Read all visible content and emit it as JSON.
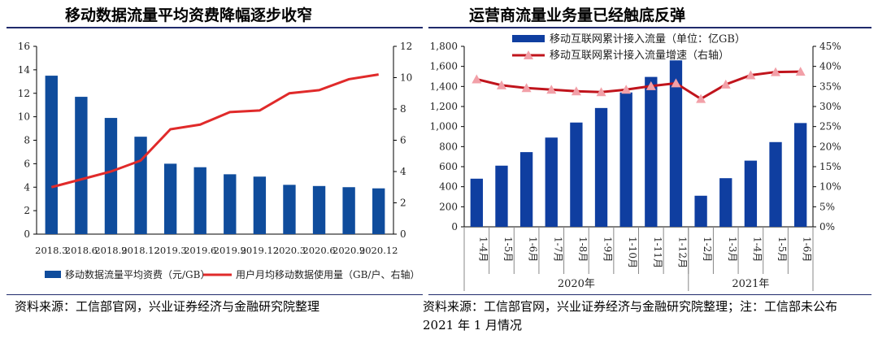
{
  "chart_data": [
    {
      "type": "bar",
      "title": "移动数据流量平均资费降幅逐步收窄",
      "categories": [
        "2018.3",
        "2018.6",
        "2018.9",
        "2018.12",
        "2019.3",
        "2019.6",
        "2019.9",
        "2019.12",
        "2020.3",
        "2020.6",
        "2020.9",
        "2020.12"
      ],
      "series": [
        {
          "name": "移动数据流量平均资费（元/GB）",
          "type": "bar",
          "axis": "left",
          "color": "#0f4c9c",
          "values": [
            13.5,
            11.7,
            9.9,
            8.3,
            6.0,
            5.7,
            5.1,
            4.9,
            4.2,
            4.1,
            4.0,
            3.9
          ]
        },
        {
          "name": "用户月均移动数据使用量（GB/户、右轴）",
          "type": "line",
          "axis": "right",
          "color": "#e02a2a",
          "values": [
            3.0,
            3.5,
            4.0,
            4.7,
            6.7,
            7.0,
            7.8,
            7.9,
            9.0,
            9.2,
            9.9,
            10.2
          ]
        }
      ],
      "ylim": [
        0,
        16
      ],
      "yticks": [
        "0",
        "2",
        "4",
        "6",
        "8",
        "10",
        "12",
        "14",
        "16"
      ],
      "y2lim": [
        0,
        12
      ],
      "y2ticks": [
        "0",
        "2",
        "4",
        "6",
        "8",
        "10",
        "12"
      ],
      "legend": "bottom",
      "grid": false,
      "source": "资料来源：工信部官网，兴业证券经济与金融研究院整理"
    },
    {
      "type": "bar",
      "title": "运营商流量业务量已经触底反弹",
      "categories": [
        "1-4月",
        "1-5月",
        "1-6月",
        "1-7月",
        "1-8月",
        "1-9月",
        "1-10月",
        "1-11月",
        "1-12月",
        "1-2月",
        "1-3月",
        "1-4月",
        "1-5月",
        "1-6月"
      ],
      "groups": [
        {
          "label": "2020年",
          "count": 9
        },
        {
          "label": "2021年",
          "count": 5
        }
      ],
      "series": [
        {
          "name": "移动互联网累计接入流量（单位：亿GB）",
          "type": "bar",
          "axis": "left",
          "color": "#0f3ea0",
          "values": [
            480,
            610,
            745,
            890,
            1040,
            1185,
            1340,
            1495,
            1660,
            310,
            485,
            660,
            845,
            1035
          ]
        },
        {
          "name": "移动互联网累计接入流量增速（右轴）",
          "type": "line",
          "axis": "right",
          "color": "#c0141c",
          "marker_color": "#f2a0a8",
          "values": [
            36.8,
            35.3,
            34.6,
            34.2,
            33.8,
            33.6,
            34.2,
            35.1,
            35.8,
            31.9,
            35.5,
            37.8,
            38.6,
            38.7
          ]
        }
      ],
      "ylim": [
        0,
        1800
      ],
      "yticks": [
        "0",
        "200",
        "400",
        "600",
        "800",
        "1,000",
        "1,200",
        "1,400",
        "1,600",
        "1,800"
      ],
      "y2lim": [
        0,
        45
      ],
      "y2ticks": [
        "0%",
        "5%",
        "10%",
        "15%",
        "20%",
        "25%",
        "30%",
        "35%",
        "40%",
        "45%"
      ],
      "legend": "top",
      "grid": false,
      "source": "资料来源：工信部官网，兴业证券经济与金融研究院整理；注：工信部未公布 2021 年 1 月情况"
    }
  ]
}
